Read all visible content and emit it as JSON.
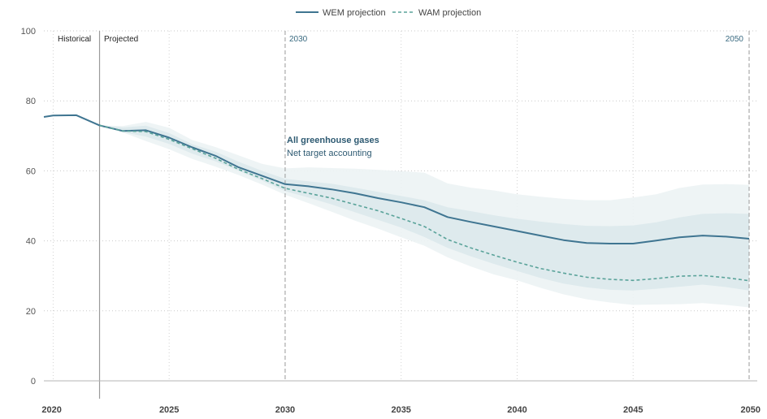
{
  "chart_data": {
    "type": "line",
    "title": "",
    "annotation": {
      "title": "All greenhouse gases",
      "subtitle": "Net target accounting"
    },
    "xlabel": "",
    "ylabel": "",
    "xlim": [
      2019.6,
      2050
    ],
    "ylim": [
      0,
      100
    ],
    "x_ticks": [
      2020,
      2025,
      2030,
      2035,
      2040,
      2045,
      2050
    ],
    "y_ticks": [
      0,
      20,
      40,
      60,
      80,
      100
    ],
    "markers": {
      "historical": "Historical",
      "projected": "Projected",
      "split_year": 2022,
      "y2030": "2030",
      "y2050": "2050"
    },
    "legend": {
      "wem": "WEM projection",
      "wam": "WAM projection",
      "placement": "top-center"
    },
    "colors": {
      "wem": "#3f7591",
      "wam": "#5aa39a",
      "band_outer": "#ecf3f4",
      "band_inner": "#dbe9ec"
    },
    "series": [
      {
        "name": "WEM projection",
        "style": "solid",
        "x": [
          2019.6,
          2020,
          2021,
          2022,
          2023,
          2024,
          2025,
          2026,
          2027,
          2028,
          2029,
          2030,
          2031,
          2032,
          2033,
          2034,
          2035,
          2036,
          2037,
          2038,
          2039,
          2040,
          2041,
          2042,
          2043,
          2044,
          2045,
          2046,
          2047,
          2048,
          2049,
          2050
        ],
        "values": [
          75.4,
          75.8,
          75.9,
          73.0,
          71.4,
          71.6,
          69.5,
          66.7,
          64.3,
          61.0,
          58.6,
          56.2,
          55.6,
          54.7,
          53.6,
          52.2,
          51.0,
          49.6,
          46.8,
          45.4,
          44.1,
          42.8,
          41.5,
          40.2,
          39.4,
          39.2,
          39.2,
          40.1,
          41.0,
          41.5,
          41.2,
          40.6
        ]
      },
      {
        "name": "WAM projection",
        "style": "dashed",
        "x": [
          2022,
          2023,
          2024,
          2025,
          2026,
          2027,
          2028,
          2029,
          2030,
          2031,
          2032,
          2033,
          2034,
          2035,
          2036,
          2037,
          2038,
          2039,
          2040,
          2041,
          2042,
          2043,
          2044,
          2045,
          2046,
          2047,
          2048,
          2049,
          2050
        ],
        "values": [
          73.0,
          71.4,
          71.2,
          69.0,
          66.3,
          63.6,
          60.4,
          57.8,
          55.0,
          53.6,
          52.2,
          50.4,
          48.6,
          46.4,
          44.1,
          40.4,
          38.0,
          35.9,
          33.9,
          32.1,
          30.8,
          29.6,
          29.0,
          28.7,
          29.2,
          29.9,
          30.1,
          29.5,
          28.6
        ]
      }
    ],
    "bands": [
      {
        "name": "outer",
        "x": [
          2022,
          2023,
          2024,
          2025,
          2026,
          2027,
          2028,
          2029,
          2030,
          2031,
          2032,
          2033,
          2034,
          2035,
          2036,
          2037,
          2038,
          2039,
          2040,
          2041,
          2042,
          2043,
          2044,
          2045,
          2046,
          2047,
          2048,
          2049,
          2050
        ],
        "upper": [
          73.0,
          72.8,
          74.0,
          72.3,
          68.8,
          66.8,
          64.4,
          62.0,
          60.7,
          61.0,
          60.8,
          60.6,
          60.3,
          59.9,
          59.5,
          56.4,
          55.2,
          54.4,
          53.3,
          52.6,
          52.0,
          51.6,
          51.6,
          52.4,
          53.3,
          55.1,
          56.1,
          56.2,
          56.0
        ],
        "lower": [
          73.0,
          71.0,
          68.5,
          66.2,
          63.4,
          61.2,
          58.8,
          56.1,
          53.2,
          50.8,
          48.3,
          45.8,
          43.5,
          41.0,
          38.6,
          35.3,
          32.7,
          30.4,
          28.7,
          26.6,
          24.7,
          23.3,
          22.4,
          21.7,
          21.8,
          21.9,
          22.2,
          21.7,
          21.0
        ]
      },
      {
        "name": "inner",
        "x": [
          2022,
          2023,
          2024,
          2025,
          2026,
          2027,
          2028,
          2029,
          2030,
          2031,
          2032,
          2033,
          2034,
          2035,
          2036,
          2037,
          2038,
          2039,
          2040,
          2041,
          2042,
          2043,
          2044,
          2045,
          2046,
          2047,
          2048,
          2049,
          2050
        ],
        "upper": [
          73.0,
          72.4,
          72.9,
          70.8,
          67.6,
          65.5,
          62.6,
          60.0,
          57.7,
          57.0,
          56.3,
          55.2,
          54.0,
          52.8,
          51.6,
          49.6,
          48.5,
          47.3,
          46.3,
          45.5,
          44.8,
          44.3,
          44.2,
          44.4,
          45.3,
          46.7,
          47.7,
          47.9,
          47.7
        ],
        "lower": [
          73.0,
          71.1,
          69.8,
          67.7,
          64.9,
          62.7,
          60.0,
          57.2,
          54.2,
          52.4,
          50.4,
          48.2,
          46.0,
          43.8,
          41.1,
          38.0,
          35.6,
          33.4,
          31.4,
          29.4,
          27.8,
          26.7,
          26.0,
          25.8,
          26.3,
          26.9,
          27.5,
          26.8,
          25.8
        ]
      }
    ]
  }
}
